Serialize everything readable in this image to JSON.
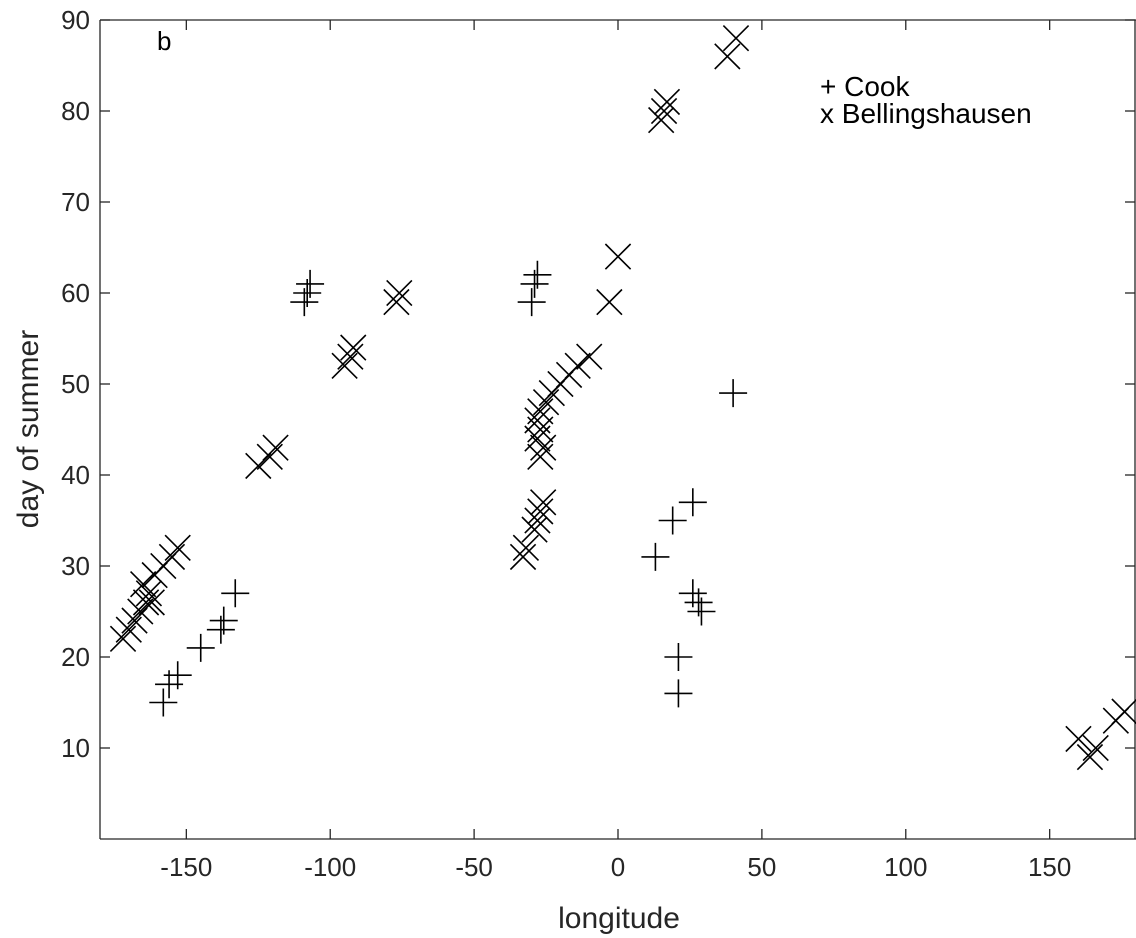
{
  "chart_data": {
    "type": "scatter",
    "panel_label": "b",
    "xlabel": "longitude",
    "ylabel": "day of summer",
    "xlim": [
      -180,
      180
    ],
    "ylim": [
      0,
      90
    ],
    "xticks": [
      -150,
      -100,
      -50,
      0,
      50,
      100,
      150
    ],
    "yticks": [
      10,
      20,
      30,
      40,
      50,
      60,
      70,
      80,
      90
    ],
    "grid": false,
    "legend_position": "top-right",
    "series": [
      {
        "name": "Cook",
        "legend_label": "+ Cook",
        "marker": "plus",
        "points": [
          {
            "x": -158,
            "y": 15
          },
          {
            "x": -156,
            "y": 17
          },
          {
            "x": -153,
            "y": 18
          },
          {
            "x": -145,
            "y": 21
          },
          {
            "x": -138,
            "y": 23
          },
          {
            "x": -137,
            "y": 24
          },
          {
            "x": -133,
            "y": 27
          },
          {
            "x": -109,
            "y": 59
          },
          {
            "x": -108,
            "y": 60
          },
          {
            "x": -107,
            "y": 61
          },
          {
            "x": -30,
            "y": 59
          },
          {
            "x": -29,
            "y": 61
          },
          {
            "x": -28,
            "y": 62
          },
          {
            "x": 13,
            "y": 31
          },
          {
            "x": 19,
            "y": 35
          },
          {
            "x": 26,
            "y": 37
          },
          {
            "x": 40,
            "y": 49
          },
          {
            "x": 26,
            "y": 27
          },
          {
            "x": 28,
            "y": 26
          },
          {
            "x": 29,
            "y": 25
          },
          {
            "x": 21,
            "y": 20
          },
          {
            "x": 21,
            "y": 16
          }
        ]
      },
      {
        "name": "Bellingshausen",
        "legend_label": "x Bellingshausen",
        "marker": "x",
        "points": [
          {
            "x": -172,
            "y": 22
          },
          {
            "x": -170,
            "y": 23
          },
          {
            "x": -168,
            "y": 24
          },
          {
            "x": -166,
            "y": 25
          },
          {
            "x": -164,
            "y": 26
          },
          {
            "x": -162,
            "y": 26
          },
          {
            "x": -163,
            "y": 27
          },
          {
            "x": -165,
            "y": 28
          },
          {
            "x": -161,
            "y": 29
          },
          {
            "x": -158,
            "y": 30
          },
          {
            "x": -155,
            "y": 31
          },
          {
            "x": -153,
            "y": 32
          },
          {
            "x": -125,
            "y": 41
          },
          {
            "x": -121,
            "y": 42
          },
          {
            "x": -119,
            "y": 43
          },
          {
            "x": -95,
            "y": 52
          },
          {
            "x": -93,
            "y": 53
          },
          {
            "x": -92,
            "y": 54
          },
          {
            "x": -77,
            "y": 59
          },
          {
            "x": -76,
            "y": 60
          },
          {
            "x": -33,
            "y": 31
          },
          {
            "x": -32,
            "y": 32
          },
          {
            "x": -29,
            "y": 34
          },
          {
            "x": -28,
            "y": 35
          },
          {
            "x": -27,
            "y": 36
          },
          {
            "x": -26,
            "y": 37
          },
          {
            "x": -27,
            "y": 42
          },
          {
            "x": -26,
            "y": 43
          },
          {
            "x": -28,
            "y": 44
          },
          {
            "x": -27,
            "y": 45
          },
          {
            "x": -28,
            "y": 46
          },
          {
            "x": -27,
            "y": 47
          },
          {
            "x": -25,
            "y": 48
          },
          {
            "x": -23,
            "y": 49
          },
          {
            "x": -20,
            "y": 50
          },
          {
            "x": -17,
            "y": 51
          },
          {
            "x": -14,
            "y": 52
          },
          {
            "x": -10,
            "y": 53
          },
          {
            "x": -3,
            "y": 59
          },
          {
            "x": 0,
            "y": 64
          },
          {
            "x": 15,
            "y": 79
          },
          {
            "x": 16,
            "y": 80
          },
          {
            "x": 17,
            "y": 81
          },
          {
            "x": 38,
            "y": 86
          },
          {
            "x": 41,
            "y": 88
          },
          {
            "x": 160,
            "y": 11
          },
          {
            "x": 164,
            "y": 9
          },
          {
            "x": 166,
            "y": 10
          },
          {
            "x": 173,
            "y": 13
          },
          {
            "x": 176,
            "y": 14
          }
        ]
      }
    ]
  }
}
